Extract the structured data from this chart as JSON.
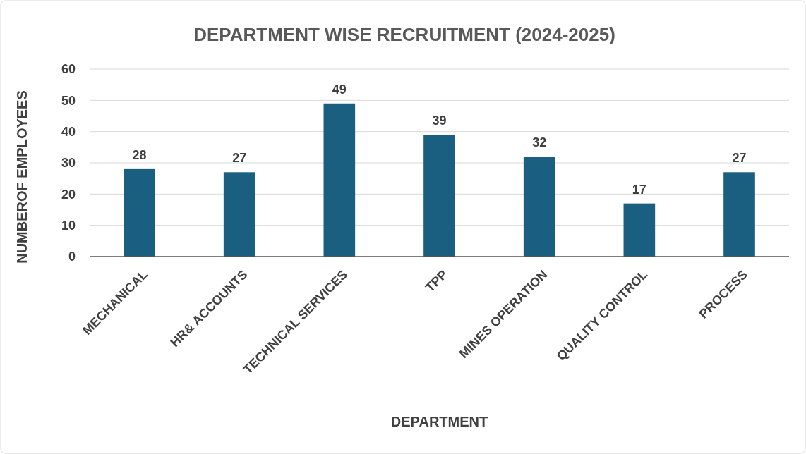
{
  "chart_data": {
    "type": "bar",
    "title": "DEPARTMENT WISE RECRUITMENT (2024-2025)",
    "xlabel": "DEPARTMENT",
    "ylabel": "NUMBEROF EMPLOYEES",
    "categories": [
      "MECHANICAL",
      "HR& ACCOUNTS",
      "TECHNICAL SERVICES",
      "TPP",
      "MINES OPERATION",
      "QUALITY CONTROL",
      "PROCESS"
    ],
    "values": [
      28,
      27,
      49,
      39,
      32,
      17,
      27
    ],
    "color": "#1a5f80",
    "ylim": [
      0,
      60
    ],
    "yticks": [
      0,
      10,
      20,
      30,
      40,
      50,
      60
    ],
    "grid": "y",
    "data_labels": true
  }
}
